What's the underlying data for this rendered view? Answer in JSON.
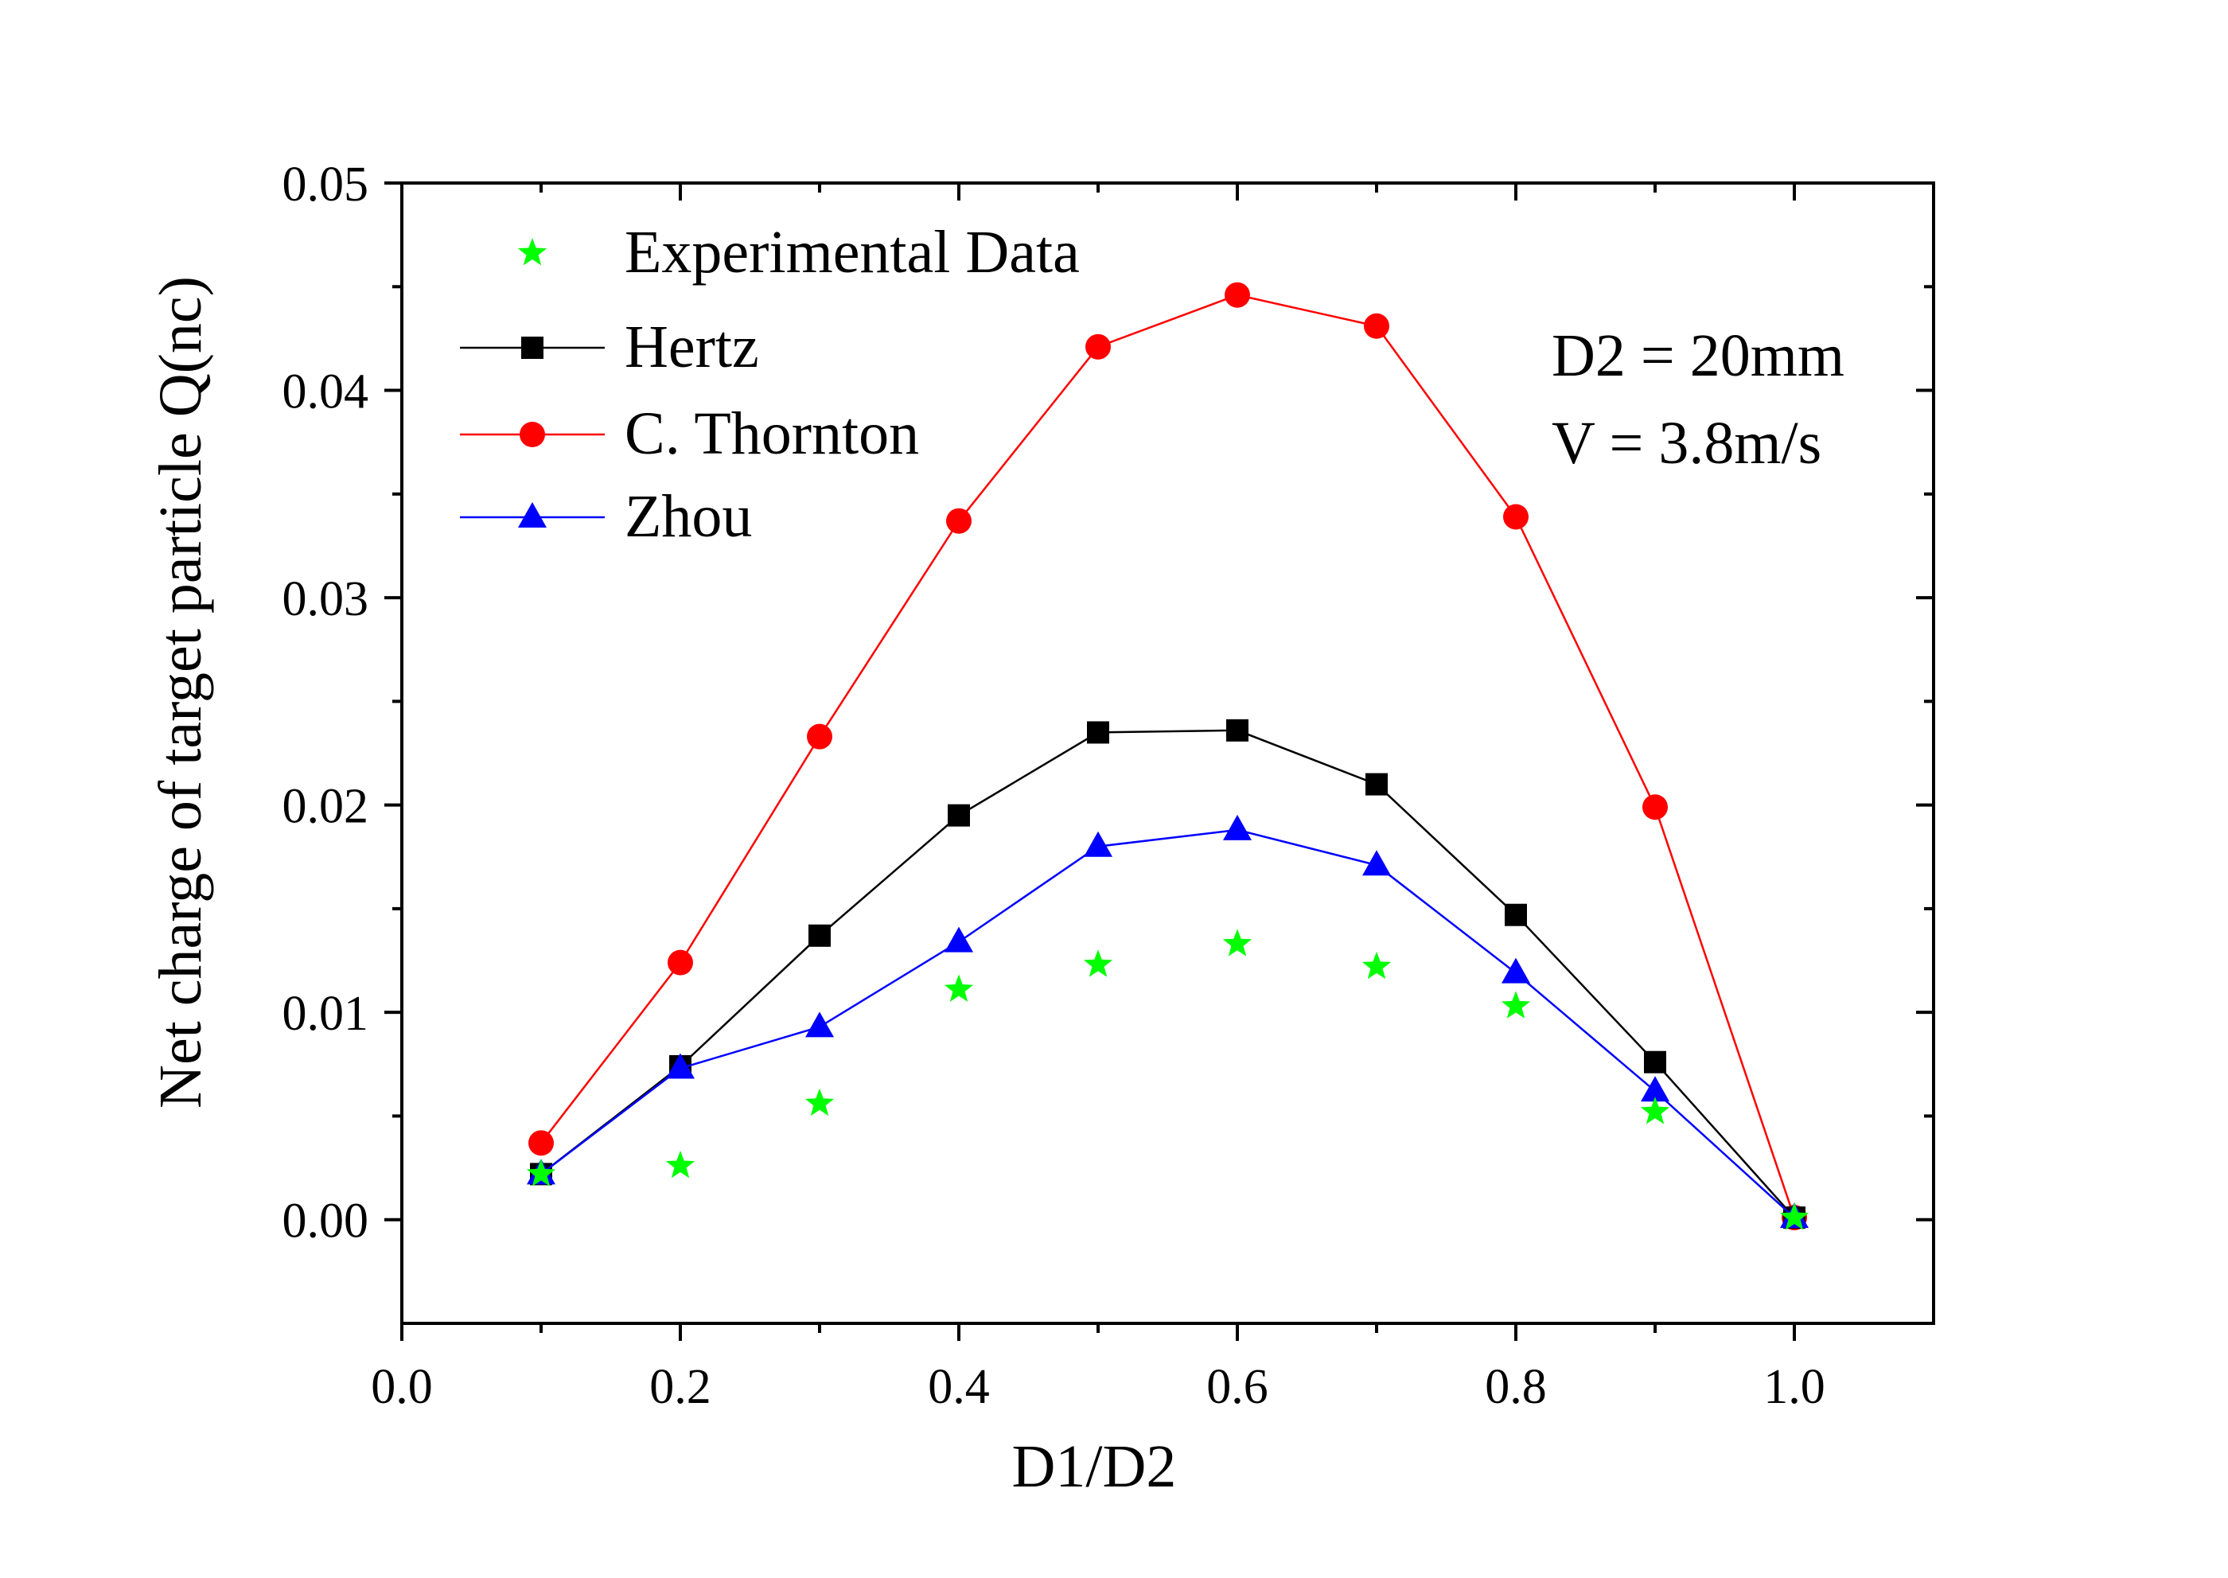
{
  "chart_data": {
    "type": "line",
    "title": "",
    "xlabel": "D1/D2",
    "ylabel": "Net charge of target particle Q(nc)",
    "xlim": [
      0.0,
      1.1
    ],
    "ylim": [
      -0.005,
      0.05
    ],
    "x_ticks": [
      0.0,
      0.2,
      0.4,
      0.6,
      0.8,
      1.0
    ],
    "x_tick_labels": [
      "0.0",
      "0.2",
      "0.4",
      "0.6",
      "0.8",
      "1.0"
    ],
    "y_ticks": [
      0.0,
      0.01,
      0.02,
      0.03,
      0.04,
      0.05
    ],
    "y_tick_labels": [
      "0.00",
      "0.01",
      "0.02",
      "0.03",
      "0.04",
      "0.05"
    ],
    "grid": false,
    "legend_position": "top-left",
    "annotations": [
      "D2 = 20mm",
      "V = 3.8m/s"
    ],
    "x": [
      0.1,
      0.2,
      0.3,
      0.4,
      0.5,
      0.6,
      0.7,
      0.8,
      0.9,
      1.0
    ],
    "series": [
      {
        "name": "Experimental Data",
        "marker": "star",
        "line": false,
        "color": "#00ff00",
        "values": [
          0.0022,
          0.0026,
          0.0056,
          0.0111,
          0.0123,
          0.0133,
          0.0122,
          0.0103,
          0.0052,
          0.0001
        ]
      },
      {
        "name": "Hertz",
        "marker": "square",
        "line": true,
        "color": "#000000",
        "values": [
          0.0022,
          0.0074,
          0.0137,
          0.0195,
          0.0235,
          0.0236,
          0.021,
          0.0147,
          0.0076,
          0.0001
        ]
      },
      {
        "name": "C. Thornton",
        "marker": "circle",
        "line": true,
        "color": "#ff0000",
        "values": [
          0.0037,
          0.0124,
          0.0233,
          0.0337,
          0.0421,
          0.0446,
          0.0431,
          0.0339,
          0.0199,
          0.0001
        ]
      },
      {
        "name": "Zhou",
        "marker": "triangle",
        "line": true,
        "color": "#0000ff",
        "values": [
          0.0022,
          0.0073,
          0.0093,
          0.0134,
          0.018,
          0.0188,
          0.0171,
          0.0119,
          0.0062,
          0.0001
        ]
      }
    ]
  }
}
